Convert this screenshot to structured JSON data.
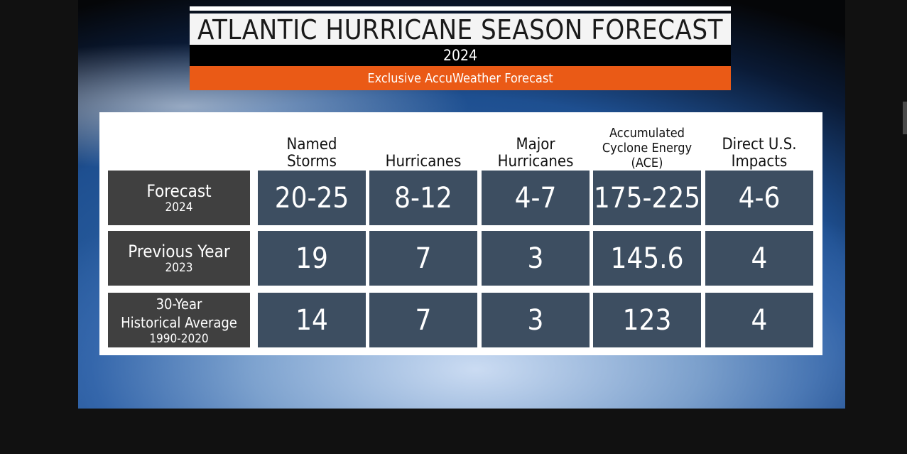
{
  "header": {
    "title": "ATLANTIC HURRICANE SEASON FORECAST",
    "year": "2024",
    "subtitle": "Exclusive AccuWeather Forecast"
  },
  "table": {
    "columns": [
      [
        "Named",
        "Storms"
      ],
      [
        "Hurricanes"
      ],
      [
        "Major",
        "Hurricanes"
      ],
      [
        "Accumulated",
        "Cyclone Energy",
        "(ACE)"
      ],
      [
        "Direct U.S.",
        "Impacts"
      ]
    ],
    "rows": [
      {
        "label": [
          "Forecast"
        ],
        "sub": "2024",
        "values": [
          "20-25",
          "8-12",
          "4-7",
          "175-225",
          "4-6"
        ]
      },
      {
        "label": [
          "Previous Year"
        ],
        "sub": "2023",
        "values": [
          "19",
          "7",
          "3",
          "145.6",
          "4"
        ]
      },
      {
        "label": [
          "30-Year",
          "Historical Average"
        ],
        "sub": "1990-2020",
        "values": [
          "14",
          "7",
          "3",
          "123",
          "4"
        ]
      }
    ]
  },
  "colors": {
    "accent": "#ea5a16",
    "label_cell": "#404040",
    "value_cell": "#3d4e61"
  }
}
